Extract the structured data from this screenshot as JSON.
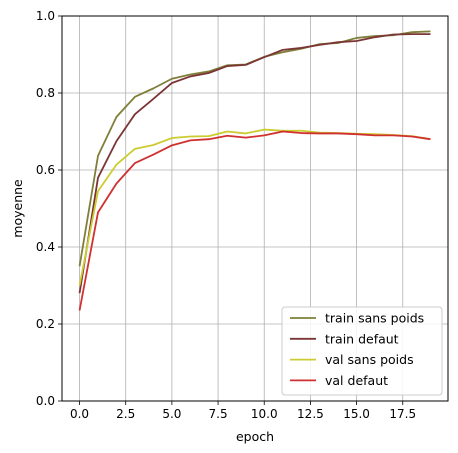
{
  "chart_data": {
    "type": "line",
    "title": "",
    "xlabel": "epoch",
    "ylabel": "moyenne",
    "xlim": [
      -0.95,
      19.95
    ],
    "ylim": [
      0,
      1
    ],
    "xticks": [
      0,
      2.5,
      5,
      7.5,
      10,
      12.5,
      15,
      17.5
    ],
    "xtick_labels": [
      "0.0",
      "2.5",
      "5.0",
      "7.5",
      "10.0",
      "12.5",
      "15.0",
      "17.5"
    ],
    "yticks": [
      0,
      0.2,
      0.4,
      0.6,
      0.8,
      1.0
    ],
    "ytick_labels": [
      "0.0",
      "0.2",
      "0.4",
      "0.6",
      "0.8",
      "1.0"
    ],
    "grid": true,
    "legend_position": "lower-right",
    "x": [
      0,
      1,
      2,
      3,
      4,
      5,
      6,
      7,
      8,
      9,
      10,
      11,
      12,
      13,
      14,
      15,
      16,
      17,
      18,
      19
    ],
    "series": [
      {
        "name": "train sans poids",
        "color": "#7f7f3a",
        "values": [
          0.35,
          0.637,
          0.738,
          0.79,
          0.812,
          0.837,
          0.848,
          0.856,
          0.872,
          0.874,
          0.894,
          0.906,
          0.915,
          0.927,
          0.93,
          0.943,
          0.948,
          0.95,
          0.958,
          0.96
        ]
      },
      {
        "name": "train defaut",
        "color": "#7b3535",
        "values": [
          0.28,
          0.58,
          0.675,
          0.745,
          0.785,
          0.826,
          0.843,
          0.852,
          0.87,
          0.873,
          0.893,
          0.912,
          0.917,
          0.925,
          0.932,
          0.935,
          0.945,
          0.952,
          0.953,
          0.953
        ]
      },
      {
        "name": "val sans poids",
        "color": "#cccc30",
        "values": [
          0.3,
          0.545,
          0.614,
          0.655,
          0.665,
          0.683,
          0.687,
          0.688,
          0.7,
          0.695,
          0.705,
          0.702,
          0.702,
          0.697,
          0.696,
          0.694,
          0.693,
          0.691,
          0.688,
          0.68
        ]
      },
      {
        "name": "val defaut",
        "color": "#d03030",
        "values": [
          0.235,
          0.49,
          0.565,
          0.618,
          0.64,
          0.664,
          0.677,
          0.68,
          0.689,
          0.684,
          0.69,
          0.7,
          0.696,
          0.695,
          0.695,
          0.693,
          0.69,
          0.69,
          0.687,
          0.68
        ]
      }
    ]
  }
}
